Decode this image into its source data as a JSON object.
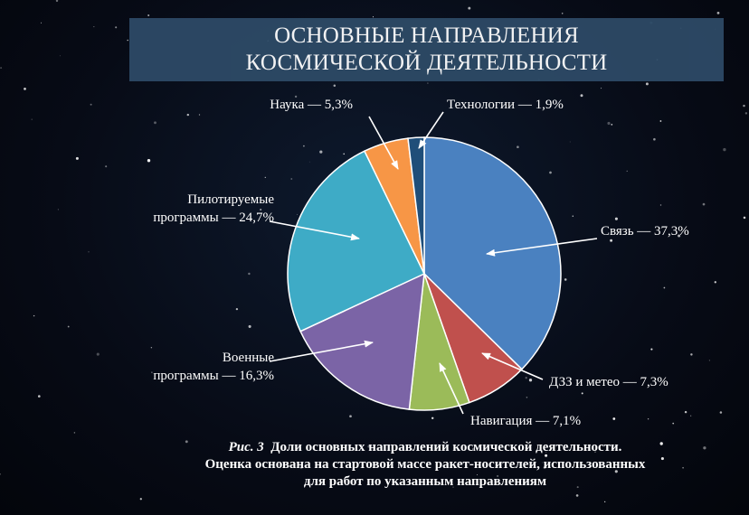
{
  "title": {
    "line1": "ОСНОВНЫЕ НАПРАВЛЕНИЯ",
    "line2": "КОСМИЧЕСКОЙ ДЕЯТЕЛЬНОСТИ"
  },
  "chart_data": {
    "type": "pie",
    "title": "ОСНОВНЫЕ НАПРАВЛЕНИЯ КОСМИЧЕСКОЙ ДЕЯТЕЛЬНОСТИ",
    "unit": "%",
    "legend": "callout labels with arrows",
    "slices": [
      {
        "name": "Связь",
        "value": 37.3,
        "color": "#4a81c0",
        "label": [
          "Связь — 37,3%"
        ]
      },
      {
        "name": "ДЗЗ и метео",
        "value": 7.3,
        "color": "#c0504d",
        "label": [
          "ДЗЗ и метео — 7,3%"
        ]
      },
      {
        "name": "Навигация",
        "value": 7.1,
        "color": "#9bbb59",
        "label": [
          "Навигация — 7,1%"
        ]
      },
      {
        "name": "Военные программы",
        "value": 16.3,
        "color": "#7b64a6",
        "label": [
          "Военные",
          "программы — 16,3%"
        ]
      },
      {
        "name": "Пилотируемые программы",
        "value": 24.7,
        "color": "#3eabc6",
        "label": [
          "Пилотируемые",
          "программы — 24,7%"
        ]
      },
      {
        "name": "Наука",
        "value": 5.3,
        "color": "#f79646",
        "label": [
          "Наука — 5,3%"
        ]
      },
      {
        "name": "Технологии",
        "value": 1.9,
        "color": "#1f4e79",
        "label": [
          "Технологии — 1,9%"
        ]
      }
    ]
  },
  "caption": {
    "fig": "Рис. 3",
    "line1": "Доли основных направлений космической деятельности.",
    "line2": "Оценка основана на стартовой массе ракет-носителей, использованных",
    "line3": "для работ по указанным направлениям"
  }
}
